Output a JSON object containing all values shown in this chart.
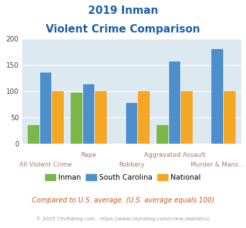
{
  "title_line1": "2019 Inman",
  "title_line2": "Violent Crime Comparison",
  "inman": [
    35,
    98,
    0,
    35,
    0
  ],
  "south_carolina": [
    135,
    113,
    78,
    157,
    180
  ],
  "national": [
    100,
    100,
    100,
    100,
    100
  ],
  "inman_color": "#7ab648",
  "sc_color": "#4d8fcc",
  "national_color": "#f5a623",
  "bg_color": "#dce9f0",
  "title_color": "#1a5fa8",
  "xlabel_color": "#b07070",
  "legend_label_inman": "Inman",
  "legend_label_sc": "South Carolina",
  "legend_label_national": "National",
  "footer_text": "Compared to U.S. average. (U.S. average equals 100)",
  "copyright_text": "© 2025 CityRating.com - https://www.cityrating.com/crime-statistics/",
  "upper_labels": [
    [
      1,
      "Rape"
    ],
    [
      3,
      "Aggravated Assault"
    ]
  ],
  "lower_labels": [
    [
      0,
      "All Violent Crime"
    ],
    [
      2,
      "Robbery"
    ],
    [
      4,
      "Murder & Mans..."
    ]
  ],
  "ylim": [
    0,
    200
  ],
  "yticks": [
    0,
    50,
    100,
    150,
    200
  ],
  "bar_width": 0.27,
  "n_groups": 5
}
